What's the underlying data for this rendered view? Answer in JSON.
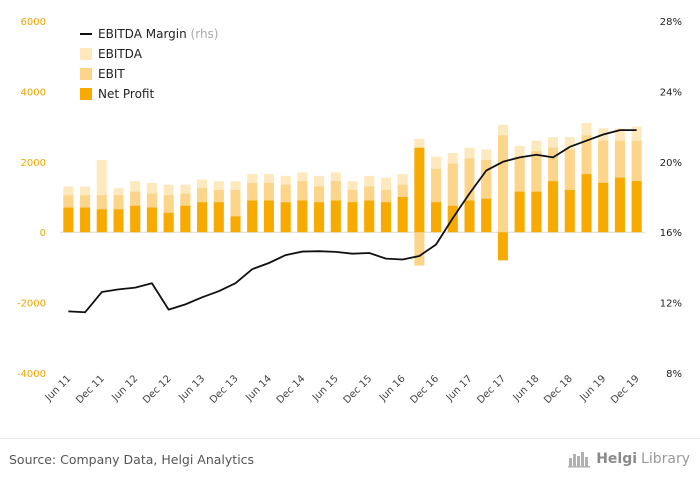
{
  "chart_data": {
    "type": "bar",
    "legend": {
      "placement": "top-left",
      "items": [
        {
          "key": "margin",
          "label": "EBITDA Margin",
          "note": "(rhs)",
          "color": "#111111"
        },
        {
          "key": "ebitda",
          "label": "EBITDA",
          "color": "#fde9bd"
        },
        {
          "key": "ebit",
          "label": "EBIT",
          "color": "#fcd48a"
        },
        {
          "key": "net",
          "label": "Net Profit",
          "color": "#f7aa00"
        }
      ]
    },
    "y_left": {
      "ylim": [
        -4000,
        6000
      ],
      "ticks": [
        "6000",
        "4000",
        "2000",
        "0",
        "-2000",
        "-4000"
      ],
      "tick_values": [
        6000,
        4000,
        2000,
        0,
        -2000,
        -4000
      ]
    },
    "y_right": {
      "ylim": [
        8,
        28
      ],
      "ticks": [
        "28%",
        "24%",
        "20%",
        "16%",
        "12%",
        "8%"
      ],
      "tick_values": [
        28,
        24,
        20,
        16,
        12,
        8
      ]
    },
    "x_tick_labels": [
      {
        "index": 0,
        "label": "Jun 11"
      },
      {
        "index": 2,
        "label": "Dec 11"
      },
      {
        "index": 4,
        "label": "Jun 12"
      },
      {
        "index": 6,
        "label": "Dec 12"
      },
      {
        "index": 8,
        "label": "Jun 13"
      },
      {
        "index": 10,
        "label": "Dec 13"
      },
      {
        "index": 12,
        "label": "Jun 14"
      },
      {
        "index": 14,
        "label": "Dec 14"
      },
      {
        "index": 16,
        "label": "Jun 15"
      },
      {
        "index": 18,
        "label": "Dec 15"
      },
      {
        "index": 20,
        "label": "Jun 16"
      },
      {
        "index": 22,
        "label": "Dec 16"
      },
      {
        "index": 24,
        "label": "Jun 17"
      },
      {
        "index": 26,
        "label": "Dec 17"
      },
      {
        "index": 28,
        "label": "Jun 18"
      },
      {
        "index": 30,
        "label": "Dec 18"
      },
      {
        "index": 32,
        "label": "Jun 19"
      },
      {
        "index": 34,
        "label": "Dec 19"
      }
    ],
    "colors": {
      "ebitda": "#fde9bd",
      "ebit": "#fcd48a",
      "net": "#f7aa00",
      "margin": "#111111",
      "zero_line": "#d8d8d8"
    },
    "series": [
      {
        "name": "EBITDA",
        "key": "ebitda",
        "axis": "left",
        "values": [
          1300,
          1300,
          2050,
          1250,
          1450,
          1400,
          1350,
          1350,
          1500,
          1450,
          1450,
          1650,
          1650,
          1600,
          1700,
          1600,
          1700,
          1450,
          1600,
          1550,
          1650,
          2650,
          2150,
          2250,
          2400,
          2350,
          3050,
          2450,
          2600,
          2700,
          2700,
          3100,
          2950,
          2950,
          3000
        ]
      },
      {
        "name": "EBIT",
        "key": "ebit",
        "axis": "left",
        "values": [
          1050,
          1050,
          1050,
          1050,
          1150,
          1100,
          1050,
          1100,
          1250,
          1200,
          1200,
          1400,
          1400,
          1350,
          1450,
          1300,
          1450,
          1200,
          1300,
          1200,
          1350,
          -950,
          1800,
          1950,
          2100,
          2050,
          2750,
          2150,
          2300,
          2400,
          2350,
          2750,
          2600,
          2600,
          2600
        ]
      },
      {
        "name": "Net Profit",
        "key": "net",
        "axis": "left",
        "values": [
          700,
          700,
          650,
          650,
          750,
          700,
          550,
          750,
          850,
          850,
          450,
          900,
          900,
          850,
          900,
          850,
          900,
          850,
          900,
          850,
          1000,
          2400,
          850,
          750,
          900,
          950,
          -800,
          1150,
          1150,
          1450,
          1200,
          1650,
          1400,
          1550,
          1450
        ]
      },
      {
        "name": "EBITDA Margin",
        "key": "margin",
        "axis": "right",
        "type": "line",
        "values": [
          11.5,
          11.45,
          12.6,
          12.75,
          12.85,
          13.1,
          11.6,
          11.9,
          12.3,
          12.65,
          13.1,
          13.9,
          14.25,
          14.7,
          14.9,
          14.92,
          14.88,
          14.78,
          14.82,
          14.5,
          14.45,
          14.65,
          15.3,
          16.8,
          18.2,
          19.5,
          20,
          20.25,
          20.4,
          20.25,
          20.85,
          21.2,
          21.55,
          21.8,
          21.8
        ]
      }
    ]
  },
  "footer": {
    "source": "Source: Company Data, Helgi Analytics",
    "brand_a": "Helgi",
    "brand_b": "Library"
  }
}
